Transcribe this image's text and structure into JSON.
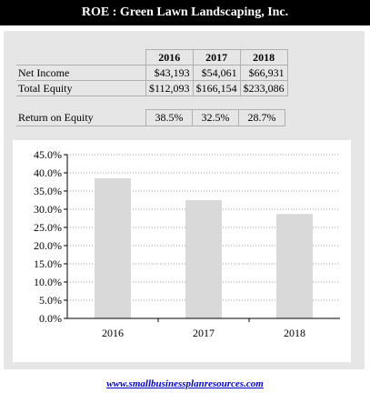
{
  "title": "ROE  : Green Lawn Landscaping, Inc.",
  "table": {
    "years": [
      "2016",
      "2017",
      "2018"
    ],
    "rows": [
      {
        "label": "Net Income",
        "values": [
          "$43,193",
          "$54,061",
          "$66,931"
        ]
      },
      {
        "label": "Total Equity",
        "values": [
          "$112,093",
          "$166,154",
          "$233,086"
        ]
      }
    ],
    "roe_label": "Return on Equity",
    "roe_values": [
      "38.5%",
      "32.5%",
      "28.7%"
    ]
  },
  "chart_data": {
    "type": "bar",
    "categories": [
      "2016",
      "2017",
      "2018"
    ],
    "values": [
      38.5,
      32.5,
      28.7
    ],
    "ylim": [
      0,
      45
    ],
    "yticks": [
      "0.0%",
      "5.0%",
      "10.0%",
      "15.0%",
      "20.0%",
      "25.0%",
      "30.0%",
      "35.0%",
      "40.0%",
      "45.0%"
    ],
    "title": "",
    "xlabel": "",
    "ylabel": "",
    "grid": true,
    "bar_color": "#d9d9d9"
  },
  "footer": "www.smallbusinessplanresources.com"
}
